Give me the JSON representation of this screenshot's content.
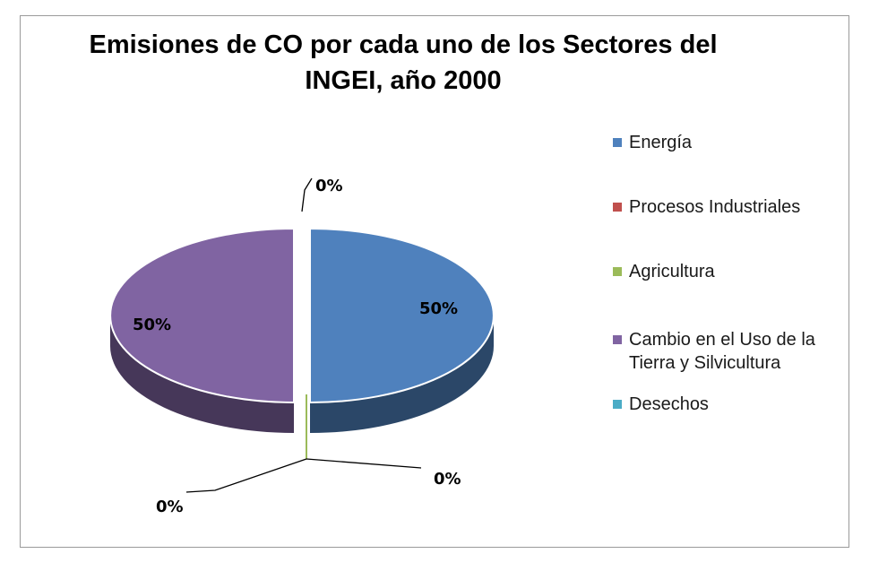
{
  "chart_data": {
    "type": "pie",
    "title": "Emisiones de CO por cada uno de los Sectores  del\nINGEI,  año 2000",
    "categories": [
      "Energía",
      "Procesos Industriales",
      "Agricultura",
      "Cambio en el Uso de la Tierra y Silvicultura",
      "Desechos"
    ],
    "values": [
      50,
      0,
      0,
      50,
      0
    ],
    "data_labels": [
      "50%",
      "0%",
      "0%",
      "50%",
      "0%"
    ],
    "colors": [
      "#4f81bd",
      "#c0504d",
      "#9bbb59",
      "#8064a2",
      "#4bacc6"
    ],
    "legend_position": "right",
    "style": "3d-exploded"
  }
}
